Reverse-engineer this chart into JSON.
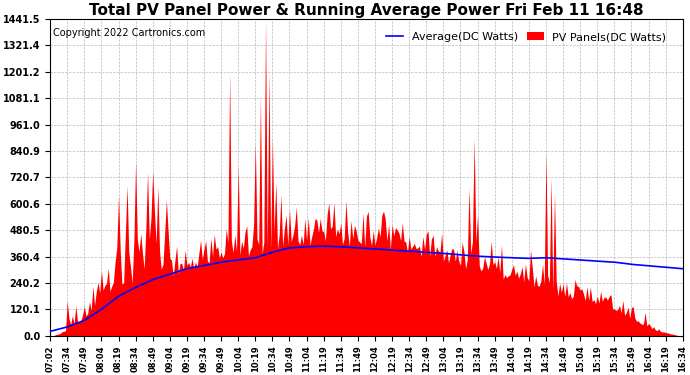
{
  "title": "Total PV Panel Power & Running Average Power Fri Feb 11 16:48",
  "copyright": "Copyright 2022 Cartronics.com",
  "legend_avg": "Average(DC Watts)",
  "legend_pv": "PV Panels(DC Watts)",
  "yticks": [
    0.0,
    120.1,
    240.2,
    360.4,
    480.5,
    600.6,
    720.7,
    840.9,
    961.0,
    1081.1,
    1201.2,
    1321.4,
    1441.5
  ],
  "ymax": 1441.5,
  "background_color": "#ffffff",
  "pv_color": "#ff0000",
  "avg_color": "#0000ff",
  "grid_color": "#aaaaaa",
  "title_fontsize": 11,
  "copyright_fontsize": 7,
  "legend_fontsize": 8,
  "xtick_labels": [
    "07:02",
    "07:34",
    "07:49",
    "08:04",
    "08:19",
    "08:34",
    "08:49",
    "09:04",
    "09:19",
    "09:34",
    "09:49",
    "10:04",
    "10:19",
    "10:34",
    "10:49",
    "11:04",
    "11:19",
    "11:34",
    "11:49",
    "12:04",
    "12:19",
    "12:34",
    "12:49",
    "13:04",
    "13:19",
    "13:34",
    "13:49",
    "14:04",
    "14:19",
    "14:34",
    "14:49",
    "15:04",
    "15:19",
    "15:34",
    "15:49",
    "16:04",
    "16:19",
    "16:34"
  ]
}
